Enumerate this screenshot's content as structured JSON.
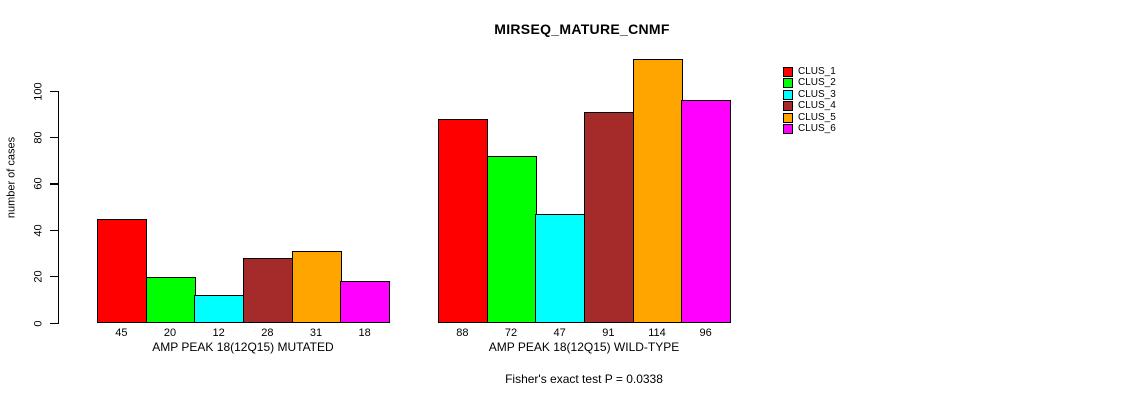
{
  "chart_data": {
    "type": "bar",
    "title": "MIRSEQ_MATURE_CNMF",
    "ylabel": "number of cases",
    "xlabel": "",
    "yticks": [
      0,
      20,
      40,
      60,
      80,
      100
    ],
    "ylim": [
      0,
      100
    ],
    "grid": false,
    "legend_position": "right",
    "series": [
      {
        "name": "CLUS_1",
        "color": "#FF0000"
      },
      {
        "name": "CLUS_2",
        "color": "#00FF00"
      },
      {
        "name": "CLUS_3",
        "color": "#00FFFF"
      },
      {
        "name": "CLUS_4",
        "color": "#A52A2A"
      },
      {
        "name": "CLUS_5",
        "color": "#FFA500"
      },
      {
        "name": "CLUS_6",
        "color": "#FF00FF"
      }
    ],
    "groups": [
      {
        "label": "AMP PEAK 18(12Q15) MUTATED",
        "values": [
          45,
          20,
          12,
          28,
          31,
          18
        ]
      },
      {
        "label": "AMP PEAK 18(12Q15) WILD-TYPE",
        "values": [
          88,
          72,
          47,
          91,
          114,
          96
        ]
      }
    ],
    "annotation": "Fisher's exact test P = 0.0338"
  }
}
